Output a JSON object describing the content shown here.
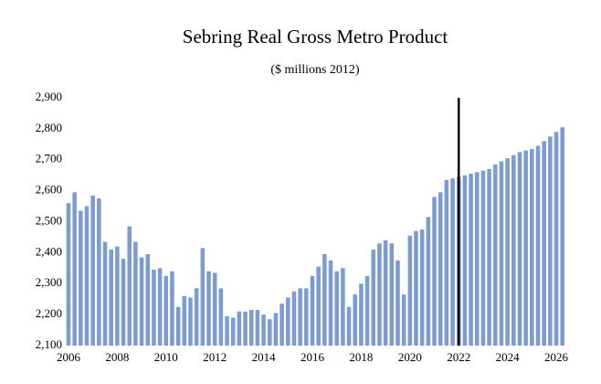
{
  "chart_data": {
    "type": "bar",
    "title": "Sebring Real Gross Metro Product",
    "subtitle": "($ millions 2012)",
    "x": [
      2006,
      2006.25,
      2006.5,
      2006.75,
      2007,
      2007.25,
      2007.5,
      2007.75,
      2008,
      2008.25,
      2008.5,
      2008.75,
      2009,
      2009.25,
      2009.5,
      2009.75,
      2010,
      2010.25,
      2010.5,
      2010.75,
      2011,
      2011.25,
      2011.5,
      2011.75,
      2012,
      2012.25,
      2012.5,
      2012.75,
      2013,
      2013.25,
      2013.5,
      2013.75,
      2014,
      2014.25,
      2014.5,
      2014.75,
      2015,
      2015.25,
      2015.5,
      2015.75,
      2016,
      2016.25,
      2016.5,
      2016.75,
      2017,
      2017.25,
      2017.5,
      2017.75,
      2018,
      2018.25,
      2018.5,
      2018.75,
      2019,
      2019.25,
      2019.5,
      2019.75,
      2020,
      2020.25,
      2020.5,
      2020.75,
      2021,
      2021.25,
      2021.5,
      2021.75,
      2022,
      2022.25,
      2022.5,
      2022.75,
      2023,
      2023.25,
      2023.5,
      2023.75,
      2024,
      2024.25,
      2024.5,
      2024.75,
      2025,
      2025.25,
      2025.5,
      2025.75,
      2026,
      2026.25
    ],
    "values": [
      2560,
      2595,
      2535,
      2550,
      2585,
      2575,
      2435,
      2410,
      2420,
      2380,
      2485,
      2435,
      2385,
      2395,
      2345,
      2350,
      2325,
      2340,
      2225,
      2260,
      2255,
      2285,
      2415,
      2340,
      2335,
      2285,
      2195,
      2190,
      2210,
      2210,
      2215,
      2215,
      2200,
      2185,
      2205,
      2235,
      2255,
      2275,
      2285,
      2285,
      2325,
      2355,
      2395,
      2375,
      2340,
      2350,
      2225,
      2265,
      2300,
      2325,
      2410,
      2430,
      2440,
      2430,
      2375,
      2265,
      2455,
      2470,
      2475,
      2515,
      2580,
      2595,
      2635,
      2640,
      2645,
      2650,
      2655,
      2660,
      2665,
      2670,
      2685,
      2695,
      2705,
      2715,
      2725,
      2730,
      2735,
      2745,
      2760,
      2775,
      2790,
      2805
    ],
    "color": "#7b9bd1",
    "xlim": [
      2005.9,
      2026.5
    ],
    "xticks": [
      2006,
      2008,
      2010,
      2012,
      2014,
      2016,
      2018,
      2020,
      2022,
      2024,
      2026
    ],
    "ylim": [
      2100,
      2900
    ],
    "yticks": [
      {
        "value": 2100,
        "label": "2,100"
      },
      {
        "value": 2200,
        "label": "2,200"
      },
      {
        "value": 2300,
        "label": "2,300"
      },
      {
        "value": 2400,
        "label": "2,400"
      },
      {
        "value": 2500,
        "label": "2,500"
      },
      {
        "value": 2600,
        "label": "2,600"
      },
      {
        "value": 2700,
        "label": "2,700"
      },
      {
        "value": 2800,
        "label": "2,800"
      },
      {
        "value": 2900,
        "label": "2,900"
      }
    ],
    "vline": 2022,
    "vline_color": "#000000",
    "grid": false
  }
}
